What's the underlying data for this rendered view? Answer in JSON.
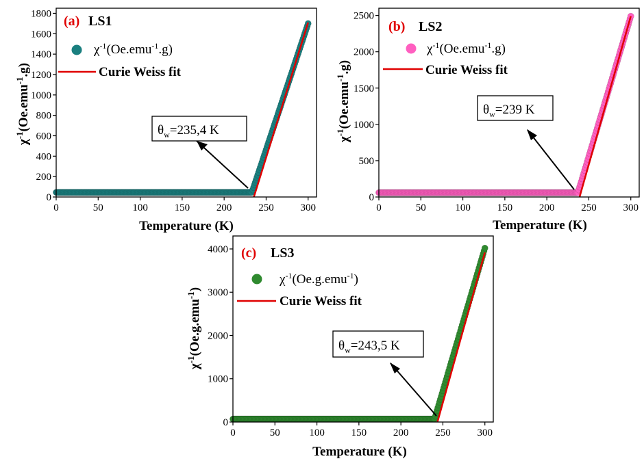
{
  "chart_data": [
    {
      "type": "scatter",
      "panel_letter": "(a)",
      "panel_name": "LS1",
      "xlabel": "Temperature (K)",
      "ylabel": "χ-1(Oe.emu-1.g)",
      "xlim": [
        0,
        310
      ],
      "ylim": [
        0,
        1850
      ],
      "xticks": [
        0,
        50,
        100,
        150,
        200,
        250,
        300
      ],
      "yticks": [
        0,
        200,
        400,
        600,
        800,
        1000,
        1200,
        1400,
        1600,
        1800
      ],
      "legend": {
        "placement": "top-left",
        "series": "χ-1(Oe.emu-1.g)",
        "fit": "Curie Weiss fit"
      },
      "series_color": "#1a7f7f",
      "fit_color": "#e00000",
      "annotation": {
        "text": "θw=235,4 K",
        "arrow_target": [
          235.4,
          0
        ]
      },
      "baseline": 45,
      "theta_w": 235.4,
      "fit_line": [
        [
          235.4,
          0
        ],
        [
          300,
          1710
        ]
      ],
      "points_summary": {
        "t_start": 0,
        "t_end": 300,
        "t_onset": 233,
        "y_end": 1700
      }
    },
    {
      "type": "scatter",
      "panel_letter": "(b)",
      "panel_name": "LS2",
      "xlabel": "Temperature (K)",
      "ylabel": "χ-1(Oe.emu-1.g)",
      "xlim": [
        0,
        310
      ],
      "ylim": [
        0,
        2600
      ],
      "xticks": [
        0,
        50,
        100,
        150,
        200,
        250,
        300
      ],
      "yticks": [
        0,
        500,
        1000,
        1500,
        2000,
        2500
      ],
      "legend": {
        "placement": "top-left",
        "series": "χ-1(Oe.emu-1.g)",
        "fit": "Curie Weiss fit"
      },
      "series_color": "#ff5fc0",
      "fit_color": "#e00000",
      "annotation": {
        "text": "θw=239 K",
        "arrow_target": [
          239,
          0
        ]
      },
      "baseline": 60,
      "theta_w": 239,
      "fit_line": [
        [
          239,
          0
        ],
        [
          300,
          2490
        ]
      ],
      "points_summary": {
        "t_start": 0,
        "t_end": 300,
        "t_onset": 237,
        "y_end": 2490
      }
    },
    {
      "type": "scatter",
      "panel_letter": "(c)",
      "panel_name": "LS3",
      "xlabel": "Temperature (K)",
      "ylabel": "χ-1(Oe.g.emu-1)",
      "xlim": [
        0,
        310
      ],
      "ylim": [
        0,
        4300
      ],
      "xticks": [
        0,
        50,
        100,
        150,
        200,
        250,
        300
      ],
      "yticks": [
        0,
        1000,
        2000,
        3000,
        4000
      ],
      "legend": {
        "placement": "top-left",
        "series": "χ-1(Oe.g.emu-1)",
        "fit": "Curie Weiss fit"
      },
      "series_color": "#2f8a2f",
      "fit_color": "#e00000",
      "annotation": {
        "text": "θw=243,5 K",
        "arrow_target": [
          243.5,
          0
        ]
      },
      "baseline": 70,
      "theta_w": 243.5,
      "fit_line": [
        [
          243.5,
          0
        ],
        [
          300,
          3920
        ]
      ],
      "points_summary": {
        "t_start": 0,
        "t_end": 300,
        "t_onset": 240,
        "y_end": 4020
      }
    }
  ]
}
